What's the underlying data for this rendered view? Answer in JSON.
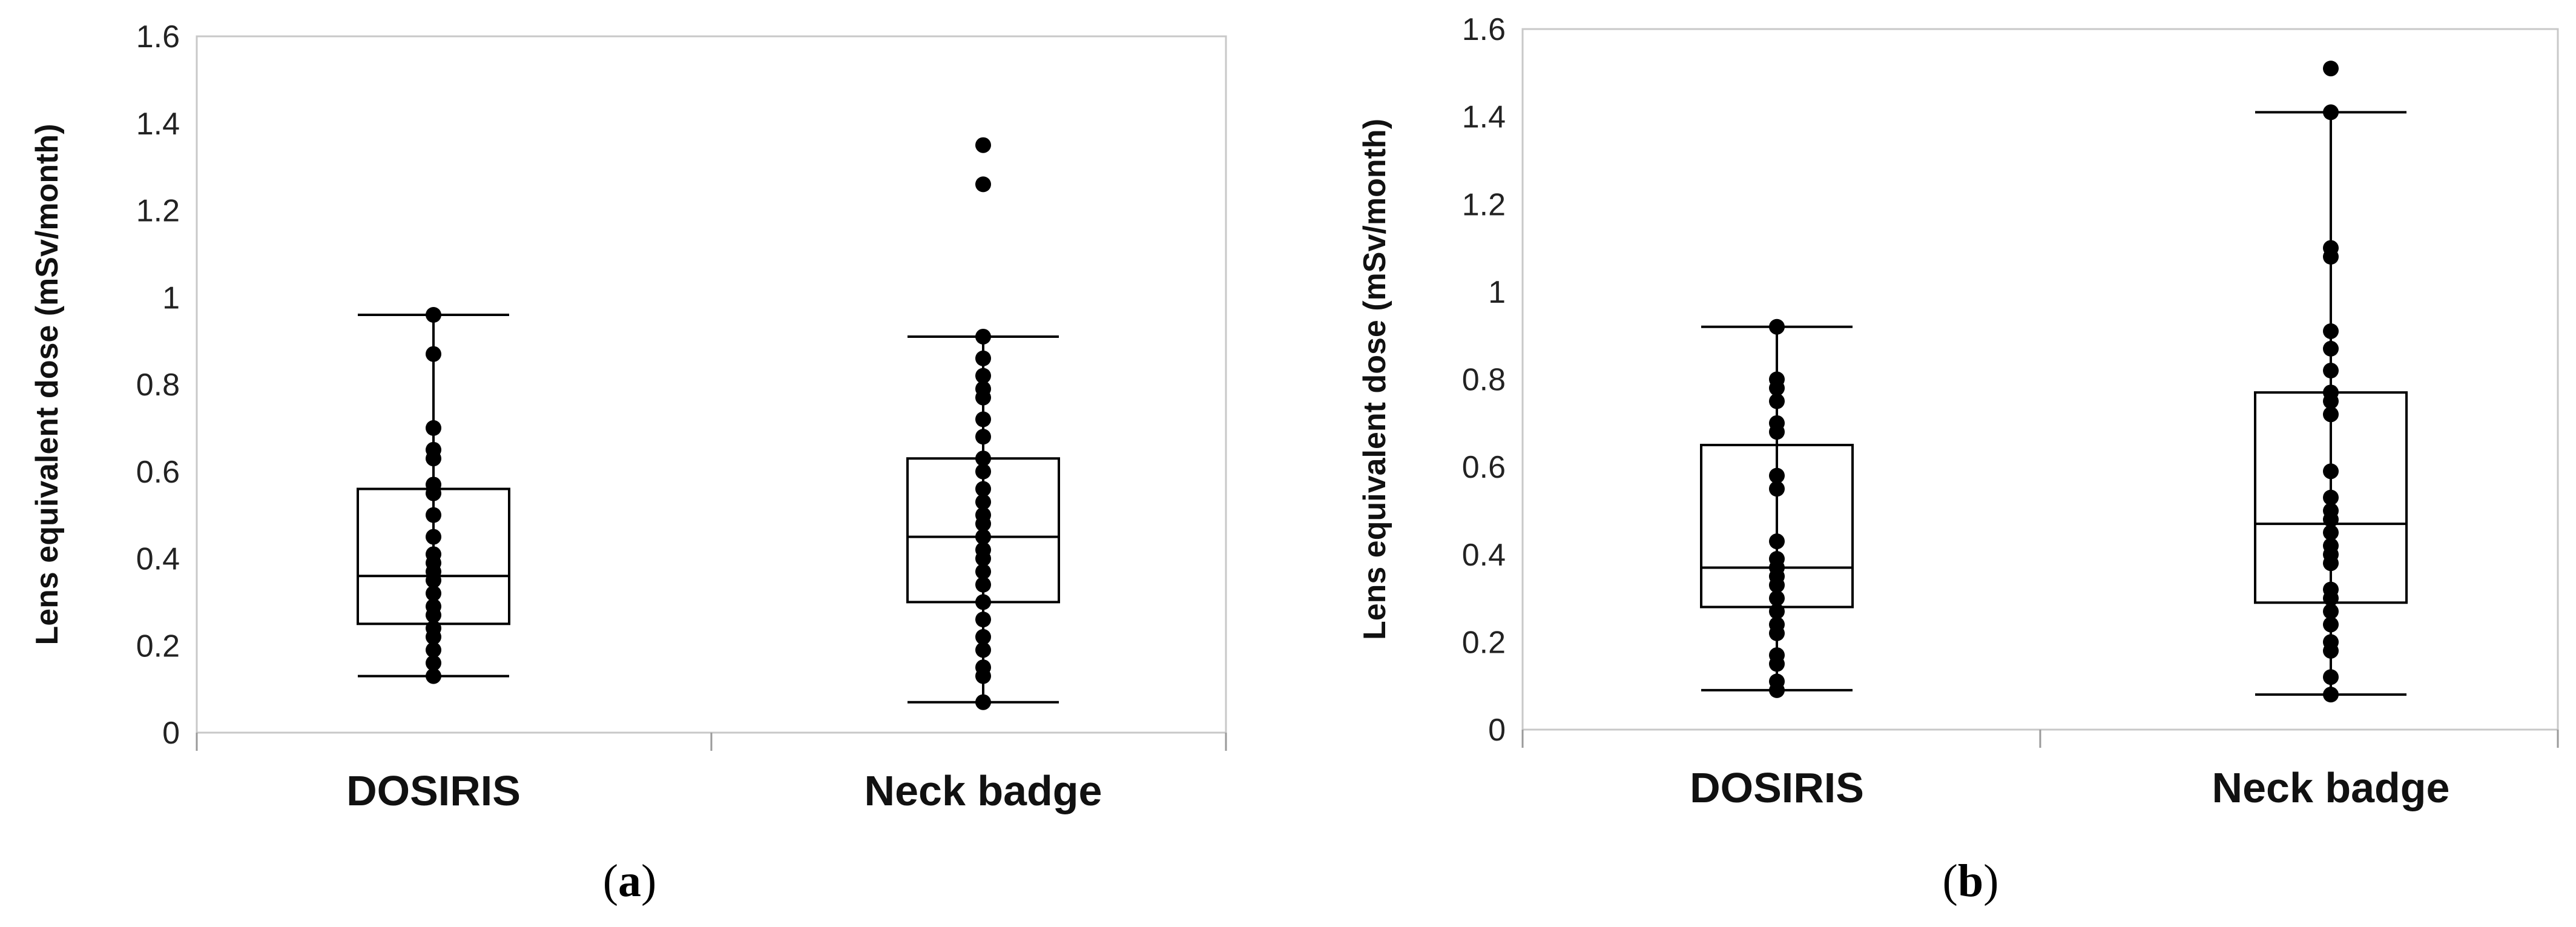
{
  "chart_data": [
    {
      "type": "box",
      "panel_label": "a",
      "ylabel": "Lens equivalent dose (mSv/month)",
      "ylim": [
        0,
        1.6
      ],
      "yticks": [
        0,
        0.2,
        0.4,
        0.6,
        0.8,
        1,
        1.2,
        1.4,
        1.6
      ],
      "ytick_labels": [
        "0",
        "0.2",
        "0.4",
        "0.6",
        "0.8",
        "1",
        "1.2",
        "1.4",
        "1.6"
      ],
      "categories": [
        "DOSIRIS",
        "Neck badge"
      ],
      "boxes": [
        {
          "name": "DOSIRIS",
          "whisker_low": 0.13,
          "q1": 0.25,
          "median": 0.36,
          "q3": 0.56,
          "whisker_high": 0.96,
          "points": [
            0.96,
            0.87,
            0.7,
            0.65,
            0.63,
            0.57,
            0.55,
            0.5,
            0.45,
            0.41,
            0.39,
            0.37,
            0.35,
            0.32,
            0.29,
            0.27,
            0.24,
            0.22,
            0.19,
            0.16,
            0.13
          ]
        },
        {
          "name": "Neck badge",
          "whisker_low": 0.07,
          "q1": 0.3,
          "median": 0.45,
          "q3": 0.63,
          "whisker_high": 0.91,
          "points": [
            1.35,
            1.26,
            0.91,
            0.86,
            0.82,
            0.79,
            0.77,
            0.72,
            0.68,
            0.63,
            0.6,
            0.56,
            0.53,
            0.5,
            0.48,
            0.45,
            0.42,
            0.4,
            0.37,
            0.34,
            0.3,
            0.26,
            0.22,
            0.19,
            0.15,
            0.13,
            0.07
          ],
          "outliers": [
            1.35,
            1.26
          ]
        }
      ]
    },
    {
      "type": "box",
      "panel_label": "b",
      "ylabel": "Lens equivalent dose (mSv/month)",
      "ylim": [
        0,
        1.6
      ],
      "yticks": [
        0,
        0.2,
        0.4,
        0.6,
        0.8,
        1,
        1.2,
        1.4,
        1.6
      ],
      "ytick_labels": [
        "0",
        "0.2",
        "0.4",
        "0.6",
        "0.8",
        "1",
        "1.2",
        "1.4",
        "1.6"
      ],
      "categories": [
        "DOSIRIS",
        "Neck badge"
      ],
      "boxes": [
        {
          "name": "DOSIRIS",
          "whisker_low": 0.09,
          "q1": 0.28,
          "median": 0.37,
          "q3": 0.65,
          "whisker_high": 0.92,
          "points": [
            0.92,
            0.8,
            0.78,
            0.75,
            0.7,
            0.68,
            0.58,
            0.55,
            0.43,
            0.39,
            0.37,
            0.35,
            0.33,
            0.3,
            0.27,
            0.24,
            0.22,
            0.17,
            0.15,
            0.11,
            0.09
          ]
        },
        {
          "name": "Neck badge",
          "whisker_low": 0.08,
          "q1": 0.29,
          "median": 0.47,
          "q3": 0.77,
          "whisker_high": 1.41,
          "points": [
            1.51,
            1.41,
            1.1,
            1.08,
            0.91,
            0.87,
            0.82,
            0.77,
            0.75,
            0.72,
            0.59,
            0.53,
            0.5,
            0.48,
            0.45,
            0.42,
            0.4,
            0.38,
            0.32,
            0.3,
            0.27,
            0.24,
            0.2,
            0.18,
            0.12,
            0.08
          ],
          "outliers": [
            1.51
          ]
        }
      ]
    }
  ]
}
